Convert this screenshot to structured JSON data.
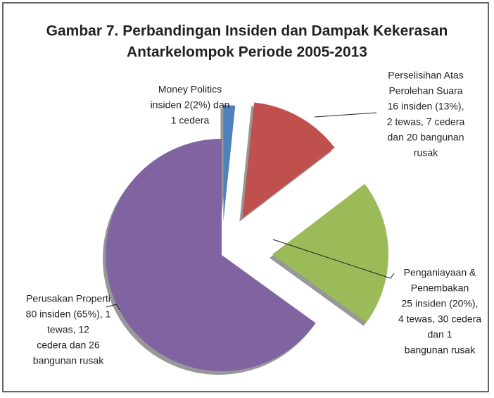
{
  "chart_data": {
    "type": "pie",
    "title": [
      "Gambar 7. Perbandingan Insiden dan Dampak Kekerasan",
      "Antarkelompok Periode 2005-2013"
    ],
    "categories": [
      "Money Politics",
      "Perselisihan Atas Perolehan Suara",
      "Penganiayaan & Penembakan",
      "Perusakan Properti"
    ],
    "values": [
      2,
      16,
      25,
      80
    ],
    "colors": [
      "#4f81bd",
      "#c0504d",
      "#9bbb59",
      "#8064a2"
    ],
    "labels": [
      [
        "Money Politics",
        "insiden 2(2%)  dan",
        "1 cedera"
      ],
      [
        "Perselisihan Atas",
        "Perolehan Suara",
        "16 insiden (13%),",
        "2 tewas, 7 cedera",
        "dan 20 bangunan",
        "rusak"
      ],
      [
        "Penganiayaan &",
        "Penembakan",
        "25 insiden (20%),",
        "4 tewas, 30 cedera",
        "dan          1",
        "bangunan rusak"
      ],
      [
        "Perusakan Properti",
        "80 insiden  (65%), 1",
        "tewas,            12",
        "cedera dan   26",
        "bangunan rusak"
      ]
    ]
  }
}
